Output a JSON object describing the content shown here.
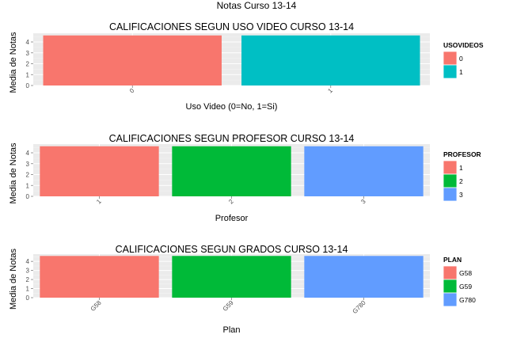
{
  "main_title": "Notas Curso 13-14",
  "chart_data": [
    {
      "type": "bar",
      "title": "CALIFICACIONES SEGUN USO VIDEO CURSO 13-14",
      "xlabel": "Uso Video (0=No, 1=Si)",
      "ylabel": "Media de Notas",
      "categories": [
        "0",
        "1"
      ],
      "values": [
        4.6,
        4.6
      ],
      "yticks": [
        "0",
        "1",
        "2",
        "3",
        "4"
      ],
      "ylim": [
        0,
        4.8
      ],
      "grid": true,
      "legend": {
        "title": "USOVIDEOS",
        "placement": "right",
        "labels": [
          "0",
          "1"
        ]
      },
      "colors": [
        "#F8766D",
        "#00BFC4"
      ]
    },
    {
      "type": "bar",
      "title": "CALIFICACIONES SEGUN PROFESOR CURSO 13-14",
      "xlabel": "Profesor",
      "ylabel": "Media de Notas",
      "categories": [
        "1",
        "2",
        "3"
      ],
      "values": [
        4.6,
        4.6,
        4.6
      ],
      "yticks": [
        "0",
        "1",
        "2",
        "3",
        "4"
      ],
      "ylim": [
        0,
        4.8
      ],
      "grid": true,
      "legend": {
        "title": "PROFESOR",
        "placement": "right",
        "labels": [
          "1",
          "2",
          "3"
        ]
      },
      "colors": [
        "#F8766D",
        "#00BA38",
        "#619CFF"
      ]
    },
    {
      "type": "bar",
      "title": "CALIFICACIONES SEGUN GRADOS CURSO 13-14",
      "xlabel": "Plan",
      "ylabel": "Media de Notas",
      "categories": [
        "G58",
        "G59",
        "G780"
      ],
      "values": [
        4.6,
        4.6,
        4.6
      ],
      "yticks": [
        "0",
        "1",
        "2",
        "3",
        "4"
      ],
      "ylim": [
        0,
        4.8
      ],
      "grid": true,
      "legend": {
        "title": "PLAN",
        "placement": "right",
        "labels": [
          "G58",
          "G59",
          "G780"
        ]
      },
      "colors": [
        "#F8766D",
        "#00BA38",
        "#619CFF"
      ]
    }
  ]
}
